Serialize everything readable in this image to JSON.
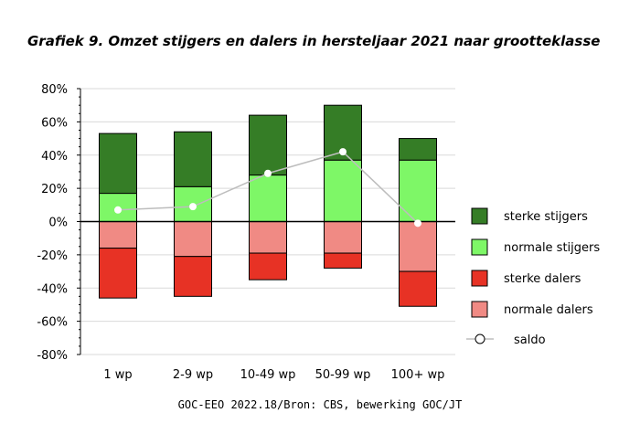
{
  "title": "Grafiek 9. Omzet stijgers en dalers in hersteljaar 2021 naar grootteklasse",
  "source": "GOC-EEO 2022.18/Bron: CBS, bewerking GOC/JT",
  "colors": {
    "sterke_stijgers": "#357d26",
    "normale_stijgers": "#7ef767",
    "sterke_dalers": "#e73225",
    "normale_dalers": "#f08a84",
    "saldo_line": "#bdbdbd",
    "saldo_marker": "#ffffff"
  },
  "chart_data": {
    "type": "bar",
    "stacked": true,
    "categories": [
      "1 wp",
      "2-9 wp",
      "10-49 wp",
      "50-99 wp",
      "100+ wp"
    ],
    "series": [
      {
        "name": "sterke stijgers",
        "values": [
          36,
          33,
          36,
          33,
          13
        ]
      },
      {
        "name": "normale stijgers",
        "values": [
          17,
          21,
          28,
          37,
          37
        ]
      },
      {
        "name": "sterke dalers",
        "values": [
          -30,
          -24,
          -16,
          -9,
          -21
        ]
      },
      {
        "name": "normale dalers",
        "values": [
          -16,
          -21,
          -19,
          -19,
          -30
        ]
      },
      {
        "name": "saldo",
        "type": "line",
        "values": [
          7,
          9,
          29,
          42,
          -1
        ]
      }
    ],
    "ylim": [
      -80,
      80
    ],
    "yticks": [
      "80%",
      "60%",
      "40%",
      "20%",
      "0%",
      "-20%",
      "-40%",
      "-60%",
      "-80%"
    ],
    "ytick_values": [
      80,
      60,
      40,
      20,
      0,
      -20,
      -40,
      -60,
      -80
    ],
    "grid": true,
    "legend_position": "right"
  }
}
